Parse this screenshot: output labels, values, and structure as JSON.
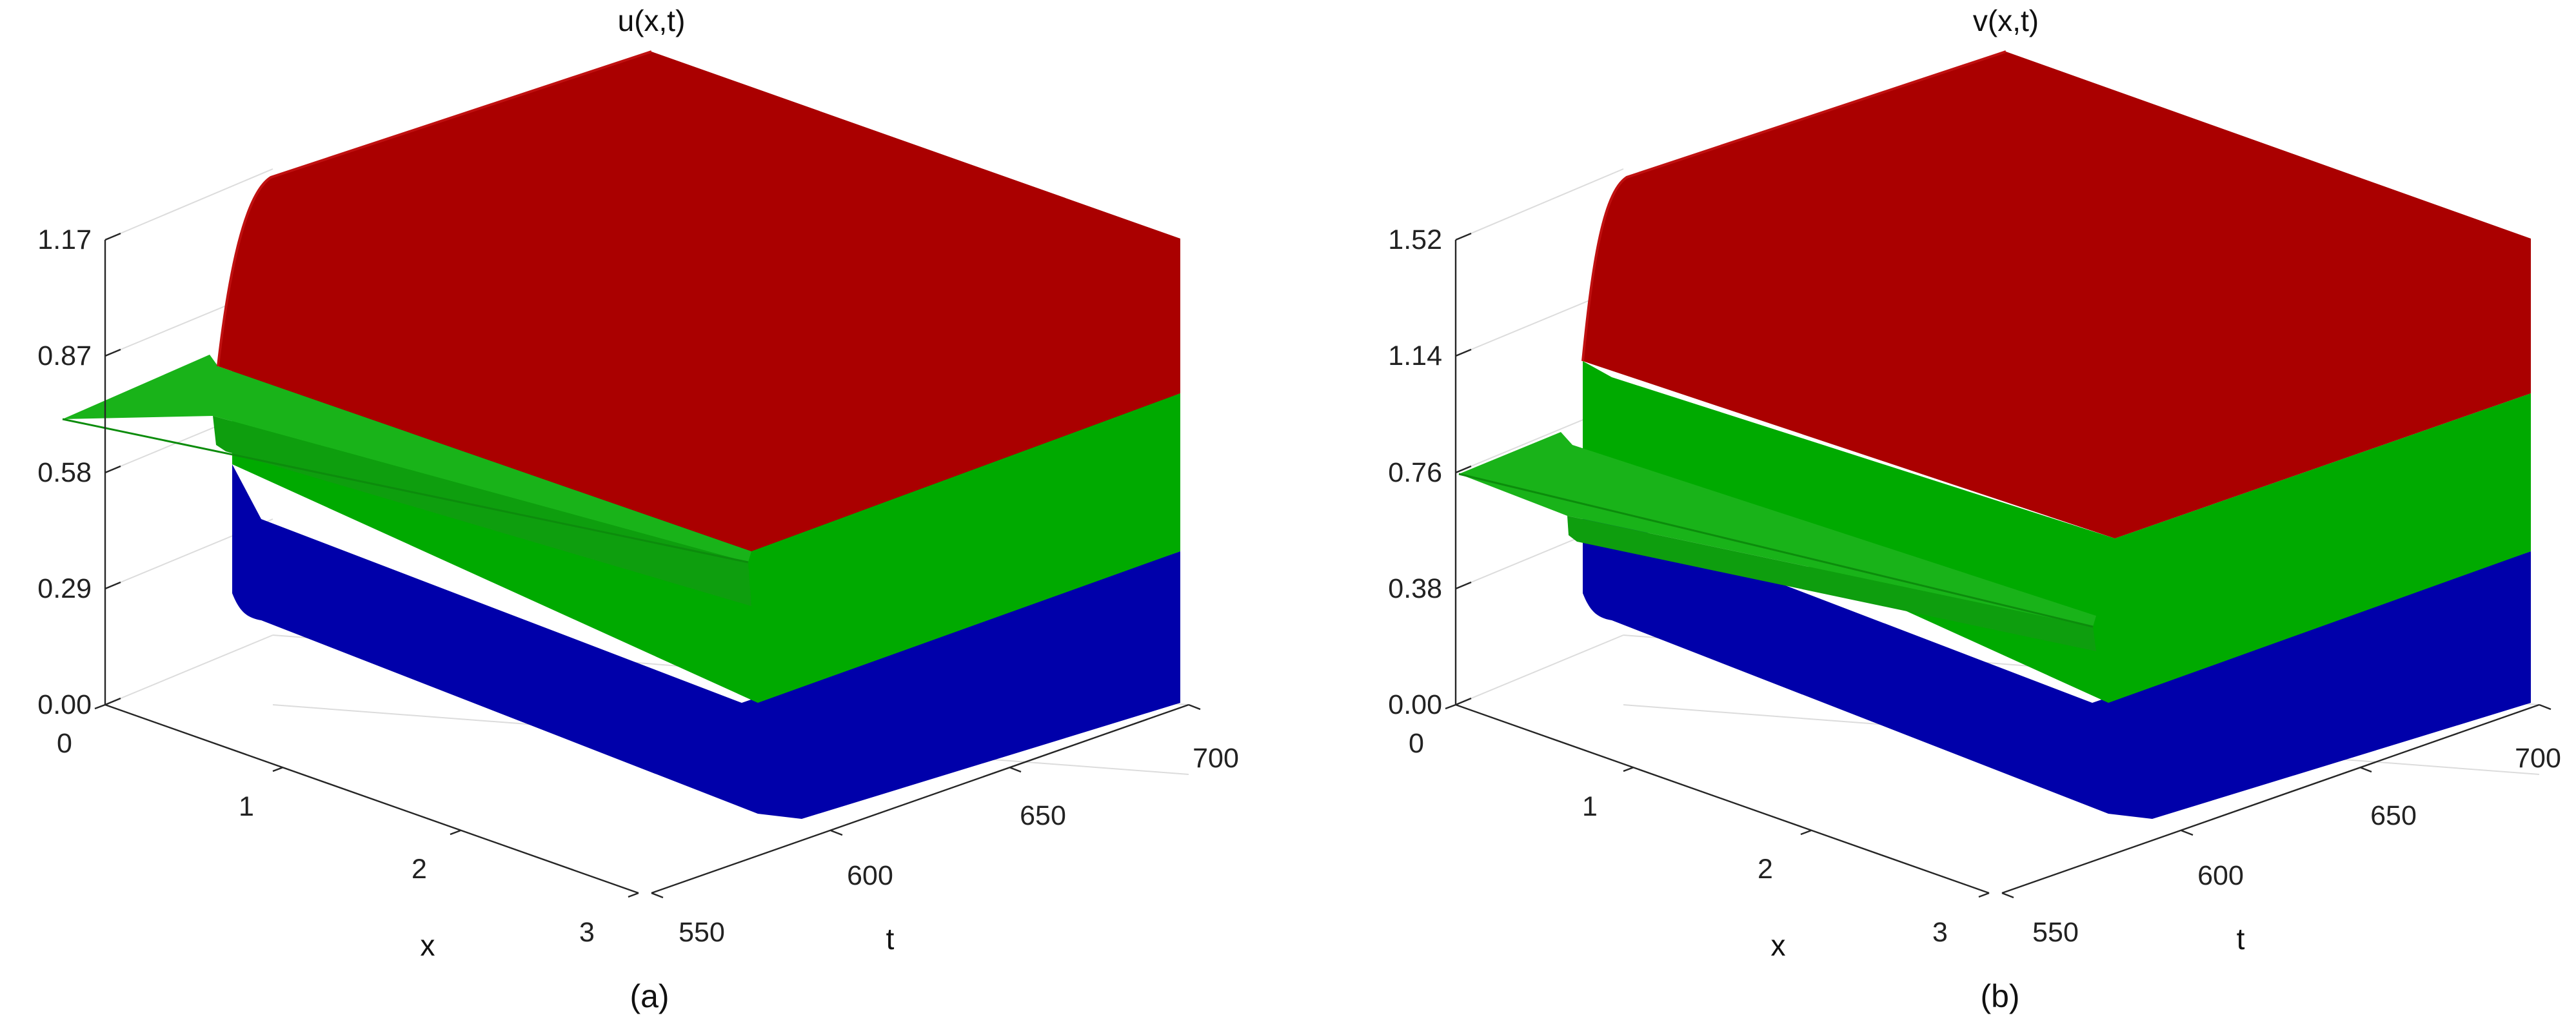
{
  "chart_data": [
    {
      "type": "surface",
      "title": "u(x,t)",
      "caption": "(a)",
      "xlabel": "x",
      "ylabel": "t",
      "zlabel": "",
      "xlim": [
        0,
        3
      ],
      "tlim": [
        550,
        700
      ],
      "zlim": [
        0,
        1.17
      ],
      "x_ticks": [
        "0",
        "1",
        "2",
        "3"
      ],
      "t_ticks": [
        "550",
        "600",
        "650",
        "700"
      ],
      "z_ticks": [
        "0.00",
        "0.29",
        "0.58",
        "0.87",
        "1.17"
      ],
      "grid": true,
      "initial_value": 0.75,
      "transition_t": 560,
      "layers": [
        {
          "position": "top",
          "x_range": [
            0,
            1
          ],
          "value": 1.17,
          "color": "#aa0000"
        },
        {
          "position": "middle",
          "x_range": [
            1,
            2
          ],
          "value": 0.75,
          "color": "#00a800"
        },
        {
          "position": "bottom",
          "x_range": [
            2,
            3
          ],
          "value": 0.0,
          "color": "#0000a8"
        }
      ]
    },
    {
      "type": "surface",
      "title": "v(x,t)",
      "caption": "(b)",
      "xlabel": "x",
      "ylabel": "t",
      "zlabel": "",
      "xlim": [
        0,
        3
      ],
      "tlim": [
        550,
        700
      ],
      "zlim": [
        0,
        1.52
      ],
      "x_ticks": [
        "0",
        "1",
        "2",
        "3"
      ],
      "t_ticks": [
        "550",
        "600",
        "650",
        "700"
      ],
      "z_ticks": [
        "0.00",
        "0.38",
        "0.76",
        "1.14",
        "1.52"
      ],
      "grid": true,
      "initial_value": 0.76,
      "transition_t": 560,
      "layers": [
        {
          "position": "top",
          "x_range": [
            0,
            1
          ],
          "value": 1.52,
          "color": "#aa0000"
        },
        {
          "position": "middle",
          "x_range": [
            1,
            2
          ],
          "value": 0.76,
          "color": "#00a800"
        },
        {
          "position": "bottom",
          "x_range": [
            2,
            3
          ],
          "value": 0.0,
          "color": "#0000a8"
        }
      ]
    }
  ]
}
